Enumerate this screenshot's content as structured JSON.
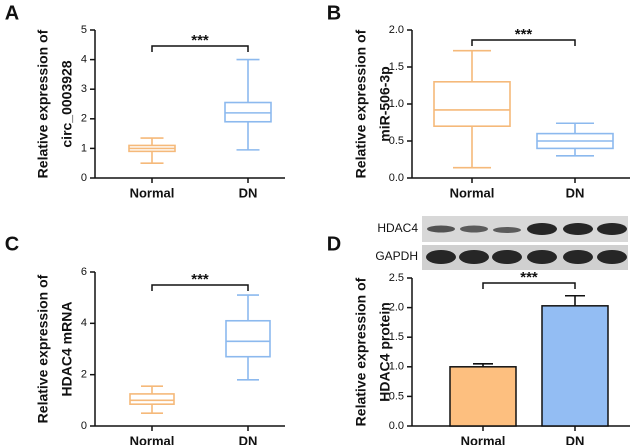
{
  "chart_data": [
    {
      "type": "box",
      "panel": "A",
      "ylabel": [
        "Relative expression of",
        "circ_0003928"
      ],
      "categories": [
        "Normal",
        "DN"
      ],
      "colors": [
        "#f5b97a",
        "#8cb9ee"
      ],
      "stats": [
        {
          "min": 0.5,
          "q1": 0.9,
          "median": 1.0,
          "q3": 1.1,
          "max": 1.35
        },
        {
          "min": 0.95,
          "q1": 1.9,
          "median": 2.2,
          "q3": 2.55,
          "max": 4.0
        }
      ],
      "ylim": [
        0,
        5
      ],
      "yticks": [
        0,
        1,
        2,
        3,
        4,
        5
      ],
      "annotation": "***"
    },
    {
      "type": "box",
      "panel": "B",
      "ylabel": [
        "Relative expression of",
        "miR-506-3p"
      ],
      "categories": [
        "Normal",
        "DN"
      ],
      "colors": [
        "#f5b97a",
        "#8cb9ee"
      ],
      "stats": [
        {
          "min": 0.14,
          "q1": 0.7,
          "median": 0.92,
          "q3": 1.3,
          "max": 1.72
        },
        {
          "min": 0.3,
          "q1": 0.4,
          "median": 0.5,
          "q3": 0.6,
          "max": 0.74
        }
      ],
      "ylim": [
        0,
        2
      ],
      "yticks": [
        {
          "value": 0,
          "label": "0.0"
        },
        0.5,
        {
          "value": 1,
          "label": "1.0"
        },
        1.5,
        {
          "value": 2,
          "label": "2.0"
        }
      ],
      "annotation": "***"
    },
    {
      "type": "box",
      "panel": "C",
      "ylabel": [
        "Relative expression of",
        "HDAC4 mRNA"
      ],
      "categories": [
        "Normal",
        "DN"
      ],
      "colors": [
        "#f5b97a",
        "#8cb9ee"
      ],
      "stats": [
        {
          "min": 0.5,
          "q1": 0.85,
          "median": 1.0,
          "q3": 1.25,
          "max": 1.55
        },
        {
          "min": 1.8,
          "q1": 2.7,
          "median": 3.3,
          "q3": 4.1,
          "max": 5.1
        }
      ],
      "ylim": [
        0,
        6
      ],
      "yticks": [
        0,
        2,
        4,
        6
      ],
      "annotation": "***"
    },
    {
      "type": "bar",
      "panel": "D",
      "ylabel": [
        "Relative expression of",
        "HDAC4 protein"
      ],
      "blot_labels": [
        "HDAC4",
        "GAPDH"
      ],
      "categories": [
        "Normal",
        "DN"
      ],
      "colors": [
        "#fdbf7f",
        "#93bdf3"
      ],
      "values": [
        1.0,
        2.03
      ],
      "errors": [
        0.05,
        0.17
      ],
      "ylim": [
        0,
        2.5
      ],
      "yticks": [
        {
          "value": 0,
          "label": "0.0"
        },
        0.5,
        {
          "value": 1,
          "label": "1.0"
        },
        1.5,
        {
          "value": 2,
          "label": "2.0"
        },
        2.5
      ],
      "annotation": "***"
    }
  ]
}
